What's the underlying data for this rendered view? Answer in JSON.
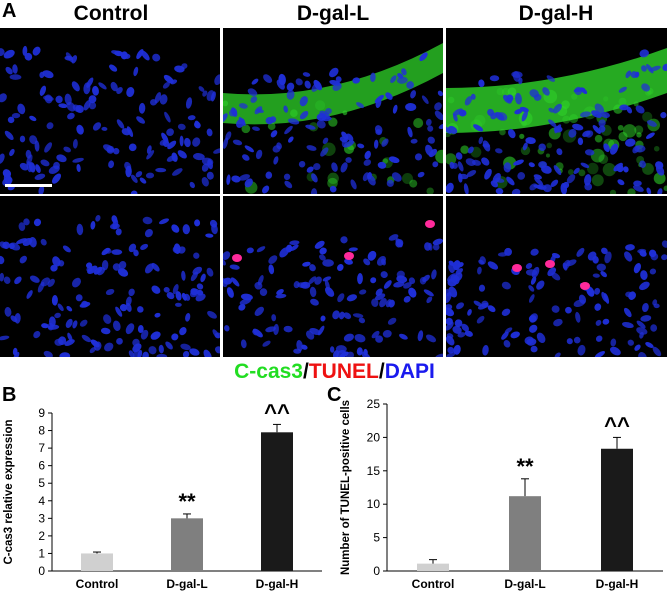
{
  "figure": {
    "panel_labels": {
      "a": "A",
      "b": "B",
      "c": "C"
    },
    "columns": [
      "Control",
      "D-gal-L",
      "D-gal-H"
    ],
    "stain_legend": [
      {
        "text": "C-cas3",
        "color": "#22dd22"
      },
      {
        "text": "/",
        "color": "#000000"
      },
      {
        "text": "TUNEL",
        "color": "#ee1111"
      },
      {
        "text": "/",
        "color": "#000000"
      },
      {
        "text": "DAPI",
        "color": "#1a1aee"
      }
    ],
    "colors": {
      "nuclei": "#1f2fd8",
      "green_signal": "#2fd42a",
      "tunel": "#ff2a9a",
      "background": "#000000"
    }
  },
  "chart_data": [
    {
      "type": "bar",
      "panel": "B",
      "categories": [
        "Control",
        "D-gal-L",
        "D-gal-H"
      ],
      "values": [
        1.0,
        3.0,
        7.9
      ],
      "errors": [
        0.08,
        0.25,
        0.45
      ],
      "annotations": [
        "",
        "**",
        "^^"
      ],
      "bar_colors": [
        "#d0d0d0",
        "#7f7f7f",
        "#1a1a1a"
      ],
      "ylabel": "C-cas3 relative expression",
      "xlabel": "",
      "ylim": [
        0,
        9
      ],
      "yticks": [
        0,
        1,
        2,
        3,
        4,
        5,
        6,
        7,
        8,
        9
      ]
    },
    {
      "type": "bar",
      "panel": "C",
      "categories": [
        "Control",
        "D-gal-L",
        "D-gal-H"
      ],
      "values": [
        1.1,
        11.2,
        18.3
      ],
      "errors": [
        0.6,
        2.6,
        1.7
      ],
      "annotations": [
        "",
        "**",
        "^^"
      ],
      "bar_colors": [
        "#d0d0d0",
        "#7f7f7f",
        "#1a1a1a"
      ],
      "ylabel": "Number of TUNEL-positive cells",
      "xlabel": "",
      "ylim": [
        0,
        25
      ],
      "yticks": [
        0,
        5,
        10,
        15,
        20,
        25
      ]
    }
  ]
}
